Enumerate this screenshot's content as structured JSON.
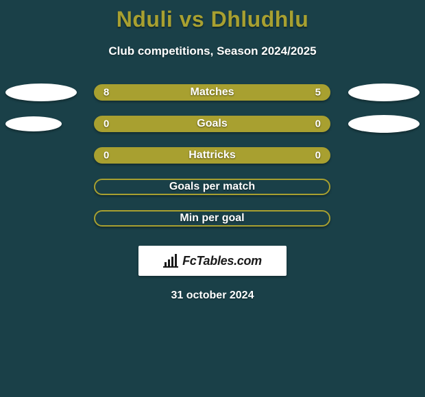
{
  "title": "Nduli vs Dhludhlu",
  "subtitle": "Club competitions, Season 2024/2025",
  "accent_color": "#a8a030",
  "background_color": "#1a4048",
  "text_color": "#ffffff",
  "pill_width": 345,
  "pill_height": 24,
  "rows": [
    {
      "label": "Matches",
      "left": "8",
      "right": "5",
      "filled": true,
      "ellipse_left_w": 104,
      "ellipse_left_h": 26,
      "ellipse_right_w": 104,
      "ellipse_right_h": 26
    },
    {
      "label": "Goals",
      "left": "0",
      "right": "0",
      "filled": true,
      "ellipse_left_w": 82,
      "ellipse_left_h": 22,
      "ellipse_right_w": 104,
      "ellipse_right_h": 26
    },
    {
      "label": "Hattricks",
      "left": "0",
      "right": "0",
      "filled": true,
      "ellipse_left_w": 0,
      "ellipse_left_h": 0,
      "ellipse_right_w": 0,
      "ellipse_right_h": 0
    },
    {
      "label": "Goals per match",
      "left": "",
      "right": "",
      "filled": false,
      "ellipse_left_w": 0,
      "ellipse_left_h": 0,
      "ellipse_right_w": 0,
      "ellipse_right_h": 0
    },
    {
      "label": "Min per goal",
      "left": "",
      "right": "",
      "filled": false,
      "ellipse_left_w": 0,
      "ellipse_left_h": 0,
      "ellipse_right_w": 0,
      "ellipse_right_h": 0
    }
  ],
  "branding_text": "FcTables.com",
  "date": "31 october 2024",
  "typography": {
    "title_fontsize": 32,
    "subtitle_fontsize": 17,
    "label_fontsize": 16,
    "value_fontsize": 15,
    "brand_fontsize": 18,
    "date_fontsize": 16
  }
}
